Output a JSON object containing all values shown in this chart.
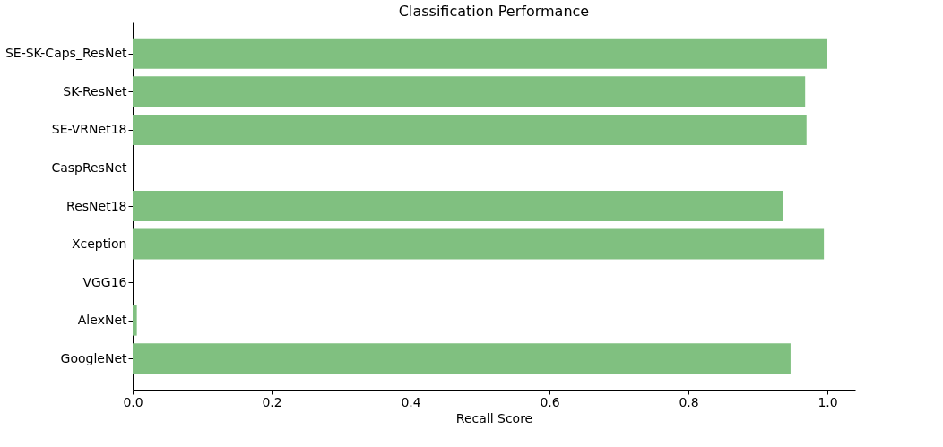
{
  "chart_data": {
    "type": "bar",
    "orientation": "horizontal",
    "title": "Classification Performance",
    "xlabel": "Recall Score",
    "categories": [
      "SE-SK-Caps_ResNet",
      "SK-ResNet",
      "SE-VRNet18",
      "CaspResNet",
      "ResNet18",
      "Xception",
      "VGG16",
      "AlexNet",
      "GoogleNet"
    ],
    "values": [
      1.0,
      0.968,
      0.97,
      0,
      0.936,
      0.995,
      0,
      0.006,
      0.947
    ],
    "color": "#80c080",
    "xlim": [
      0,
      1.04
    ],
    "xticks": [
      {
        "value": 0,
        "label": "0.0"
      },
      {
        "value": 0.2,
        "label": "0.2"
      },
      {
        "value": 0.4,
        "label": "0.4"
      },
      {
        "value": 0.6,
        "label": "0.6"
      },
      {
        "value": 0.8,
        "label": "0.8"
      },
      {
        "value": 1.0,
        "label": "1.0"
      }
    ],
    "grid": false
  }
}
